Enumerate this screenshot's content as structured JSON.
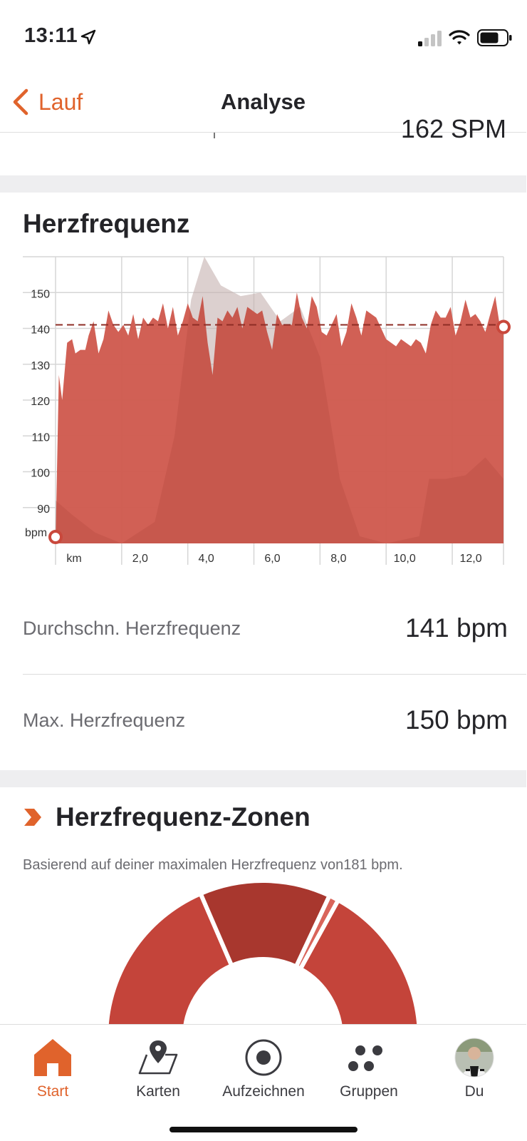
{
  "status": {
    "time": "13:11"
  },
  "nav": {
    "back_label": "Lauf",
    "title": "Analyse"
  },
  "clipped_row": {
    "value": "162 SPM"
  },
  "heart_rate": {
    "title": "Herzfrequenz",
    "avg_label": "Durchschn. Herzfrequenz",
    "avg_value": "141 bpm",
    "max_label": "Max. Herzfrequenz",
    "max_value": "150 bpm"
  },
  "chart_data": {
    "type": "area",
    "ylabel": "bpm",
    "xlabel": "km",
    "y_ticks": [
      90,
      100,
      110,
      120,
      130,
      140,
      150
    ],
    "x_ticks": [
      "km",
      "2,0",
      "4,0",
      "6,0",
      "8,0",
      "10,0",
      "12,0"
    ],
    "ylim": [
      80,
      160
    ],
    "xlim": [
      0,
      14
    ],
    "grid": true,
    "average_line": 141,
    "colors": {
      "area": "#cf5a4e",
      "average_line": "#8e2d25",
      "elevation": "#d4d4d4"
    },
    "series": [
      {
        "values": [
          [
            0.0,
            80
          ],
          [
            0.1,
            127
          ],
          [
            0.2,
            120
          ],
          [
            0.35,
            136
          ],
          [
            0.5,
            137
          ],
          [
            0.6,
            133
          ],
          [
            0.75,
            134
          ],
          [
            0.9,
            134
          ],
          [
            1.0,
            138
          ],
          [
            1.15,
            142
          ],
          [
            1.3,
            133
          ],
          [
            1.45,
            137
          ],
          [
            1.6,
            145
          ],
          [
            1.75,
            141
          ],
          [
            1.9,
            139
          ],
          [
            2.05,
            141
          ],
          [
            2.2,
            138
          ],
          [
            2.35,
            144
          ],
          [
            2.5,
            137
          ],
          [
            2.65,
            143
          ],
          [
            2.8,
            141
          ],
          [
            2.95,
            143
          ],
          [
            3.1,
            142
          ],
          [
            3.25,
            147
          ],
          [
            3.4,
            140
          ],
          [
            3.55,
            146
          ],
          [
            3.7,
            138
          ],
          [
            3.85,
            142
          ],
          [
            4.0,
            147
          ],
          [
            4.15,
            143
          ],
          [
            4.3,
            142
          ],
          [
            4.45,
            149
          ],
          [
            4.6,
            136
          ],
          [
            4.75,
            127
          ],
          [
            4.9,
            143
          ],
          [
            5.05,
            142
          ],
          [
            5.2,
            145
          ],
          [
            5.35,
            143
          ],
          [
            5.5,
            146
          ],
          [
            5.65,
            140
          ],
          [
            5.8,
            146
          ],
          [
            5.95,
            145
          ],
          [
            6.1,
            144
          ],
          [
            6.25,
            145
          ],
          [
            6.4,
            139
          ],
          [
            6.55,
            134
          ],
          [
            6.7,
            144
          ],
          [
            6.85,
            141
          ],
          [
            7.0,
            141
          ],
          [
            7.15,
            141
          ],
          [
            7.3,
            150
          ],
          [
            7.45,
            143
          ],
          [
            7.6,
            140
          ],
          [
            7.75,
            149
          ],
          [
            7.9,
            146
          ],
          [
            8.05,
            139
          ],
          [
            8.2,
            138
          ],
          [
            8.35,
            141
          ],
          [
            8.5,
            144
          ],
          [
            8.65,
            135
          ],
          [
            8.8,
            139
          ],
          [
            8.95,
            147
          ],
          [
            9.1,
            143
          ],
          [
            9.25,
            138
          ],
          [
            9.4,
            145
          ],
          [
            9.55,
            144
          ],
          [
            9.7,
            143
          ],
          [
            9.85,
            140
          ],
          [
            10.0,
            137
          ],
          [
            10.15,
            136
          ],
          [
            10.3,
            135
          ],
          [
            10.45,
            137
          ],
          [
            10.6,
            136
          ],
          [
            10.75,
            135
          ],
          [
            10.9,
            137
          ],
          [
            11.05,
            136
          ],
          [
            11.2,
            133
          ],
          [
            11.35,
            141
          ],
          [
            11.5,
            145
          ],
          [
            11.65,
            143
          ],
          [
            11.8,
            143
          ],
          [
            11.95,
            146
          ],
          [
            12.1,
            138
          ],
          [
            12.25,
            142
          ],
          [
            12.4,
            148
          ],
          [
            12.55,
            143
          ],
          [
            12.7,
            144
          ],
          [
            12.85,
            142
          ],
          [
            13.0,
            139
          ],
          [
            13.15,
            144
          ],
          [
            13.3,
            149
          ],
          [
            13.45,
            140
          ],
          [
            13.55,
            140
          ]
        ]
      }
    ]
  },
  "zones": {
    "title": "Herzfrequenz-Zonen",
    "subtitle": "Basierend auf deiner maximalen Herzfrequenz von181 bpm.",
    "chart_data": {
      "type": "pie",
      "slices": [
        {
          "value": 37,
          "color": "#c4443a"
        },
        {
          "value": 27,
          "color": "#a8372e"
        },
        {
          "value": 2,
          "color": "#d9655b"
        },
        {
          "value": 34,
          "color": "#c4443a"
        }
      ]
    }
  },
  "tabs": [
    {
      "label": "Start",
      "icon": "home-icon",
      "active": true
    },
    {
      "label": "Karten",
      "icon": "map-icon",
      "active": false
    },
    {
      "label": "Aufzeichnen",
      "icon": "record-icon",
      "active": false
    },
    {
      "label": "Gruppen",
      "icon": "groups-icon",
      "active": false
    },
    {
      "label": "Du",
      "icon": "avatar",
      "active": false
    }
  ],
  "theme": {
    "accent": "#e0632c",
    "text": "#242428"
  }
}
